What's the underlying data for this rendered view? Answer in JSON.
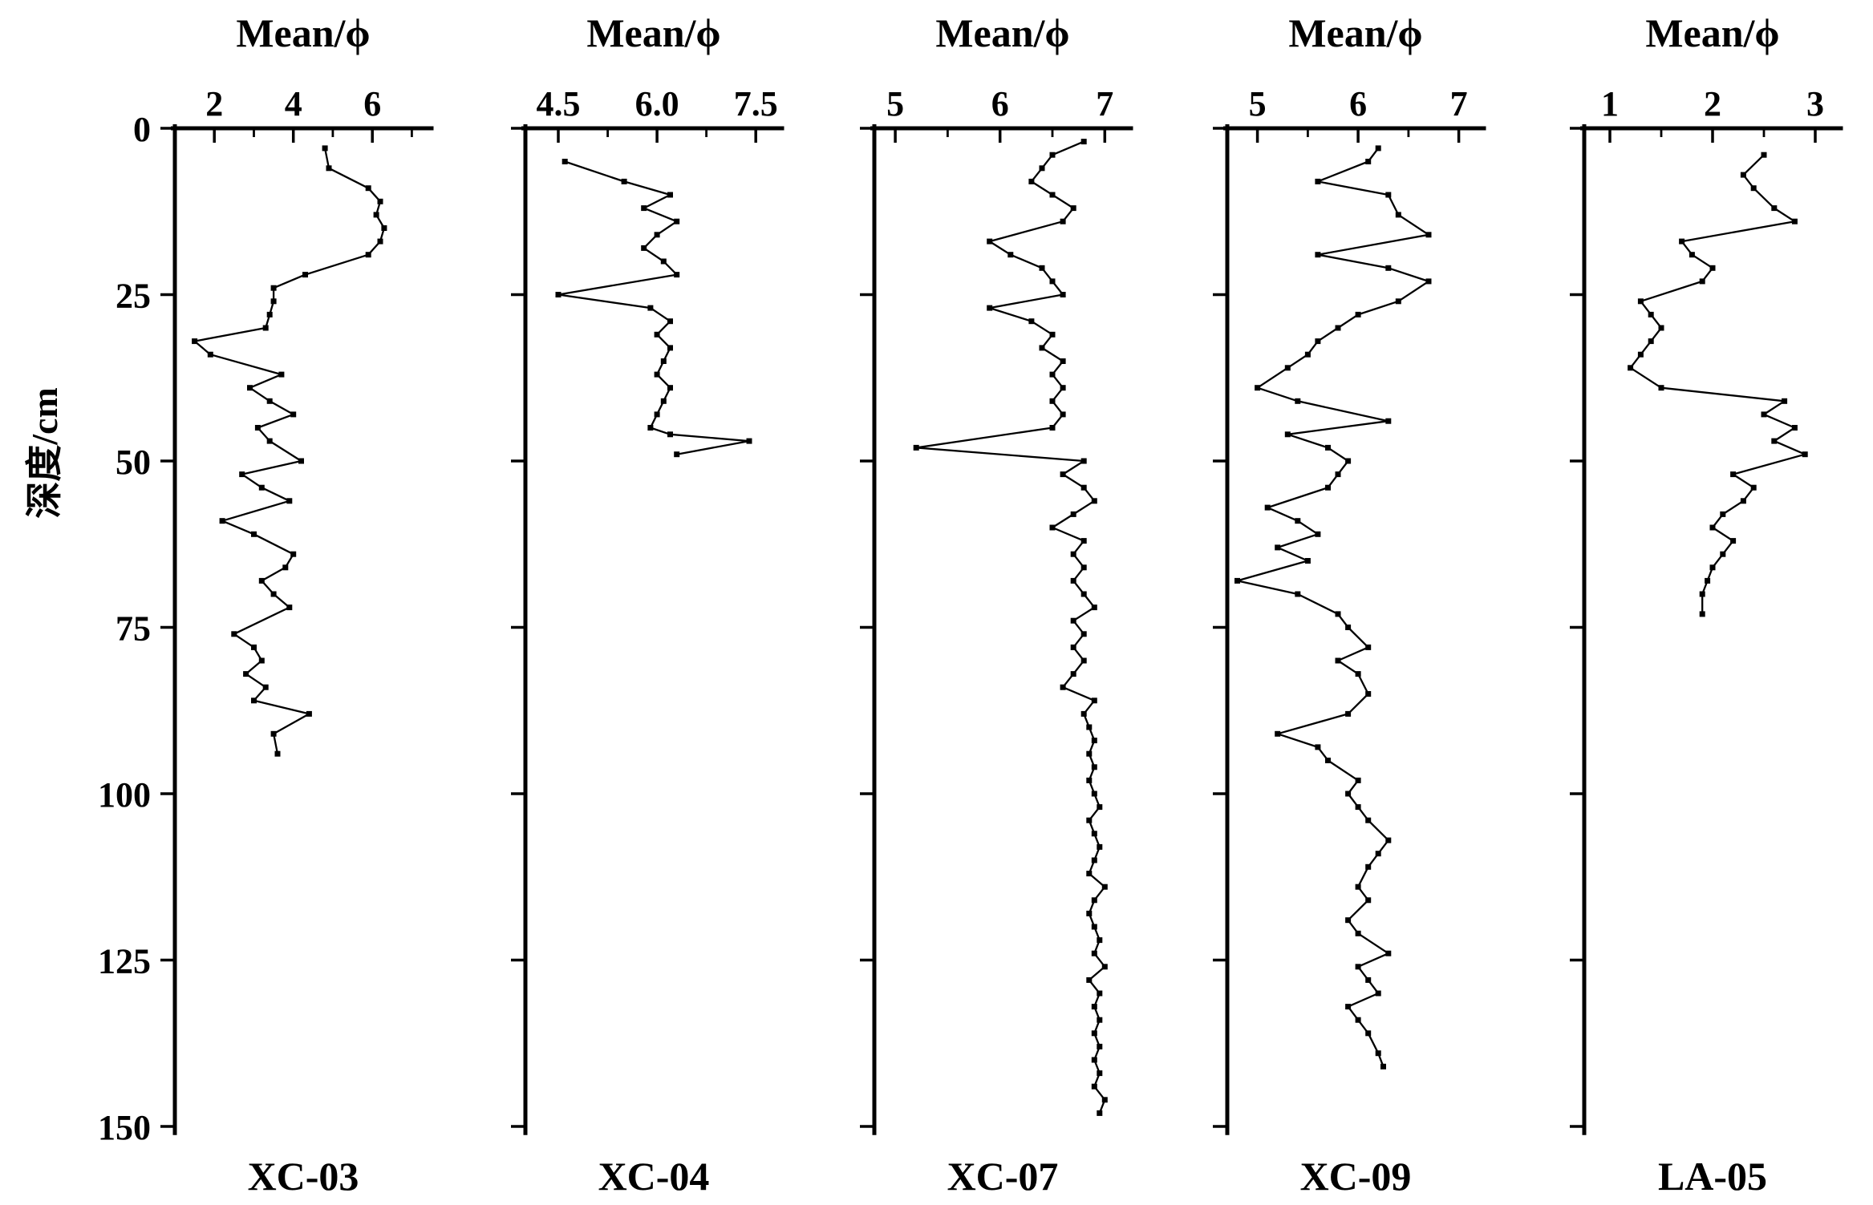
{
  "figure": {
    "ylabel": "深度/cm",
    "depth_ticks": [
      0,
      25,
      50,
      75,
      100,
      125,
      150
    ],
    "ylim": [
      0,
      150
    ],
    "line_color": "#000000",
    "background_color": "#ffffff"
  },
  "chart_data": [
    {
      "type": "line",
      "title": "XC-03",
      "xlabel": "Mean/ϕ",
      "xlim": [
        1.0,
        7.5
      ],
      "xticks": [
        2,
        4,
        6
      ],
      "xtick_labels": [
        "2",
        "4",
        "6"
      ],
      "xticks_minor": [
        3,
        5,
        7
      ],
      "depth_cm": [
        3,
        6,
        9,
        11,
        13,
        15,
        17,
        19,
        22,
        24,
        26,
        28,
        30,
        32,
        34,
        37,
        39,
        41,
        43,
        45,
        47,
        50,
        52,
        54,
        56,
        59,
        61,
        64,
        66,
        68,
        70,
        72,
        76,
        78,
        80,
        82,
        84,
        86,
        88,
        91,
        94
      ],
      "mean_phi": [
        4.8,
        4.9,
        5.9,
        6.2,
        6.1,
        6.3,
        6.2,
        5.9,
        4.3,
        3.5,
        3.5,
        3.4,
        3.3,
        1.5,
        1.9,
        3.7,
        2.9,
        3.4,
        4.0,
        3.1,
        3.4,
        4.2,
        2.7,
        3.2,
        3.9,
        2.2,
        3.0,
        4.0,
        3.8,
        3.2,
        3.5,
        3.9,
        2.5,
        3.0,
        3.2,
        2.8,
        3.3,
        3.0,
        4.4,
        3.5,
        3.6
      ]
    },
    {
      "type": "line",
      "title": "XC-04",
      "xlabel": "Mean/ϕ",
      "xlim": [
        4.0,
        7.9
      ],
      "xticks": [
        4.5,
        6.0,
        7.5
      ],
      "xtick_labels": [
        "4.5",
        "6.0",
        "7.5"
      ],
      "xticks_minor": [
        5.25,
        6.75
      ],
      "depth_cm": [
        5,
        8,
        10,
        12,
        14,
        16,
        18,
        20,
        22,
        25,
        27,
        29,
        31,
        33,
        35,
        37,
        39,
        41,
        43,
        45,
        46,
        47,
        49
      ],
      "mean_phi": [
        4.6,
        5.5,
        6.2,
        5.8,
        6.3,
        6.0,
        5.8,
        6.1,
        6.3,
        4.5,
        5.9,
        6.2,
        6.0,
        6.2,
        6.1,
        6.0,
        6.2,
        6.1,
        6.0,
        5.9,
        6.2,
        7.4,
        6.3
      ]
    },
    {
      "type": "line",
      "title": "XC-07",
      "xlabel": "Mean/ϕ",
      "xlim": [
        4.8,
        7.25
      ],
      "xticks": [
        5,
        6,
        7
      ],
      "xtick_labels": [
        "5",
        "6",
        "7"
      ],
      "xticks_minor": [
        5.5,
        6.5
      ],
      "depth_cm": [
        2,
        4,
        6,
        8,
        10,
        12,
        14,
        17,
        19,
        21,
        23,
        25,
        27,
        29,
        31,
        33,
        35,
        37,
        39,
        41,
        43,
        45,
        48,
        50,
        52,
        54,
        56,
        58,
        60,
        62,
        64,
        66,
        68,
        70,
        72,
        74,
        76,
        78,
        80,
        82,
        84,
        86,
        88,
        90,
        92,
        94,
        96,
        98,
        100,
        102,
        104,
        106,
        108,
        110,
        112,
        114,
        116,
        118,
        120,
        122,
        124,
        126,
        128,
        130,
        132,
        134,
        136,
        138,
        140,
        142,
        144,
        146,
        148
      ],
      "mean_phi": [
        6.8,
        6.5,
        6.4,
        6.3,
        6.5,
        6.7,
        6.6,
        5.9,
        6.1,
        6.4,
        6.5,
        6.6,
        5.9,
        6.3,
        6.5,
        6.4,
        6.6,
        6.5,
        6.6,
        6.5,
        6.6,
        6.5,
        5.2,
        6.8,
        6.6,
        6.8,
        6.9,
        6.7,
        6.5,
        6.8,
        6.7,
        6.8,
        6.7,
        6.8,
        6.9,
        6.7,
        6.8,
        6.7,
        6.8,
        6.7,
        6.6,
        6.9,
        6.8,
        6.85,
        6.9,
        6.85,
        6.9,
        6.85,
        6.9,
        6.95,
        6.85,
        6.9,
        6.95,
        6.9,
        6.85,
        7.0,
        6.9,
        6.85,
        6.9,
        6.95,
        6.9,
        7.0,
        6.85,
        6.95,
        6.9,
        6.95,
        6.9,
        6.95,
        6.9,
        6.95,
        6.9,
        7.0,
        6.95
      ]
    },
    {
      "type": "line",
      "title": "XC-09",
      "xlabel": "Mean/ϕ",
      "xlim": [
        4.7,
        7.25
      ],
      "xticks": [
        5,
        6,
        7
      ],
      "xtick_labels": [
        "5",
        "6",
        "7"
      ],
      "xticks_minor": [
        5.5,
        6.5
      ],
      "depth_cm": [
        3,
        5,
        8,
        10,
        13,
        16,
        19,
        21,
        23,
        26,
        28,
        30,
        32,
        34,
        36,
        39,
        41,
        44,
        46,
        48,
        50,
        52,
        54,
        57,
        59,
        61,
        63,
        65,
        68,
        70,
        73,
        75,
        78,
        80,
        82,
        85,
        88,
        91,
        93,
        95,
        98,
        100,
        102,
        104,
        107,
        109,
        111,
        114,
        116,
        119,
        121,
        124,
        126,
        128,
        130,
        132,
        134,
        136,
        139,
        141
      ],
      "mean_phi": [
        6.2,
        6.1,
        5.6,
        6.3,
        6.4,
        6.7,
        5.6,
        6.3,
        6.7,
        6.4,
        6.0,
        5.8,
        5.6,
        5.5,
        5.3,
        5.0,
        5.4,
        6.3,
        5.3,
        5.7,
        5.9,
        5.8,
        5.7,
        5.1,
        5.4,
        5.6,
        5.2,
        5.5,
        4.8,
        5.4,
        5.8,
        5.9,
        6.1,
        5.8,
        6.0,
        6.1,
        5.9,
        5.2,
        5.6,
        5.7,
        6.0,
        5.9,
        6.0,
        6.1,
        6.3,
        6.2,
        6.1,
        6.0,
        6.1,
        5.9,
        6.0,
        6.3,
        6.0,
        6.1,
        6.2,
        5.9,
        6.0,
        6.1,
        6.2,
        6.25
      ]
    },
    {
      "type": "line",
      "title": "LA-05",
      "xlabel": "Mean/ϕ",
      "xlim": [
        0.75,
        3.25
      ],
      "xticks": [
        1,
        2,
        3
      ],
      "xtick_labels": [
        "1",
        "2",
        "3"
      ],
      "xticks_minor": [
        1.5,
        2.5
      ],
      "depth_cm": [
        4,
        7,
        9,
        12,
        14,
        17,
        19,
        21,
        23,
        26,
        28,
        30,
        32,
        34,
        36,
        39,
        41,
        43,
        45,
        47,
        49,
        52,
        54,
        56,
        58,
        60,
        62,
        64,
        66,
        68,
        70,
        73
      ],
      "mean_phi": [
        2.5,
        2.3,
        2.4,
        2.6,
        2.8,
        1.7,
        1.8,
        2.0,
        1.9,
        1.3,
        1.4,
        1.5,
        1.4,
        1.3,
        1.2,
        1.5,
        2.7,
        2.5,
        2.8,
        2.6,
        2.9,
        2.2,
        2.4,
        2.3,
        2.1,
        2.0,
        2.2,
        2.1,
        2.0,
        1.95,
        1.9,
        1.9
      ]
    }
  ]
}
